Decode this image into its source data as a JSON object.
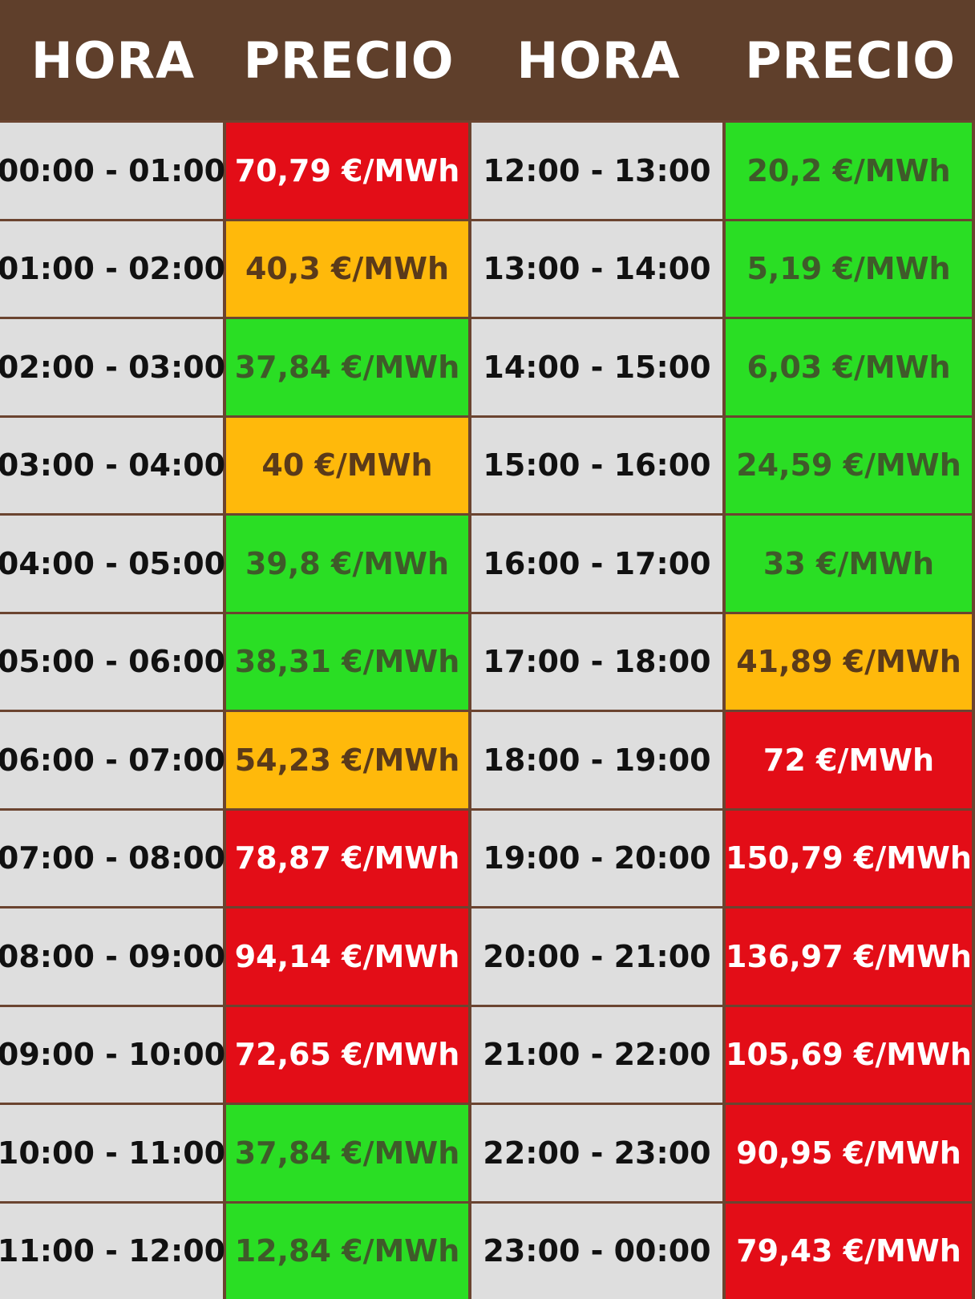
{
  "header": {
    "col1": "HORA",
    "col2": "PRECIO",
    "col3": "HORA",
    "col4": "PRECIO"
  },
  "colors": {
    "header_bg": "#5f3f2b",
    "hour_bg": "#dedede",
    "red": "#e30d17",
    "orange": "#ffb90b",
    "green": "#2ade24"
  },
  "rows": [
    {
      "h1": "00:00 - 01:00",
      "p1": "70,79 €/MWh",
      "c1": "red",
      "h2": "12:00 - 13:00",
      "p2": "20,2 €/MWh",
      "c2": "green"
    },
    {
      "h1": "01:00 - 02:00",
      "p1": "40,3 €/MWh",
      "c1": "orange",
      "h2": "13:00 - 14:00",
      "p2": "5,19 €/MWh",
      "c2": "green"
    },
    {
      "h1": "02:00 - 03:00",
      "p1": "37,84 €/MWh",
      "c1": "green",
      "h2": "14:00 - 15:00",
      "p2": "6,03 €/MWh",
      "c2": "green"
    },
    {
      "h1": "03:00 - 04:00",
      "p1": "40 €/MWh",
      "c1": "orange",
      "h2": "15:00 - 16:00",
      "p2": "24,59 €/MWh",
      "c2": "green"
    },
    {
      "h1": "04:00 - 05:00",
      "p1": "39,8 €/MWh",
      "c1": "green",
      "h2": "16:00 - 17:00",
      "p2": "33 €/MWh",
      "c2": "green"
    },
    {
      "h1": "05:00 - 06:00",
      "p1": "38,31 €/MWh",
      "c1": "green",
      "h2": "17:00 - 18:00",
      "p2": "41,89 €/MWh",
      "c2": "orange"
    },
    {
      "h1": "06:00 - 07:00",
      "p1": "54,23 €/MWh",
      "c1": "orange",
      "h2": "18:00 - 19:00",
      "p2": "72 €/MWh",
      "c2": "red"
    },
    {
      "h1": "07:00 - 08:00",
      "p1": "78,87 €/MWh",
      "c1": "red",
      "h2": "19:00 - 20:00",
      "p2": "150,79 €/MWh",
      "c2": "red"
    },
    {
      "h1": "08:00 - 09:00",
      "p1": "94,14 €/MWh",
      "c1": "red",
      "h2": "20:00 - 21:00",
      "p2": "136,97 €/MWh",
      "c2": "red"
    },
    {
      "h1": "09:00 - 10:00",
      "p1": "72,65 €/MWh",
      "c1": "red",
      "h2": "21:00 - 22:00",
      "p2": "105,69 €/MWh",
      "c2": "red"
    },
    {
      "h1": "10:00 - 11:00",
      "p1": "37,84 €/MWh",
      "c1": "green",
      "h2": "22:00 - 23:00",
      "p2": "90,95 €/MWh",
      "c2": "red"
    },
    {
      "h1": "11:00 - 12:00",
      "p1": "12,84 €/MWh",
      "c1": "green",
      "h2": "23:00 - 00:00",
      "p2": "79,43 €/MWh",
      "c2": "red"
    }
  ]
}
